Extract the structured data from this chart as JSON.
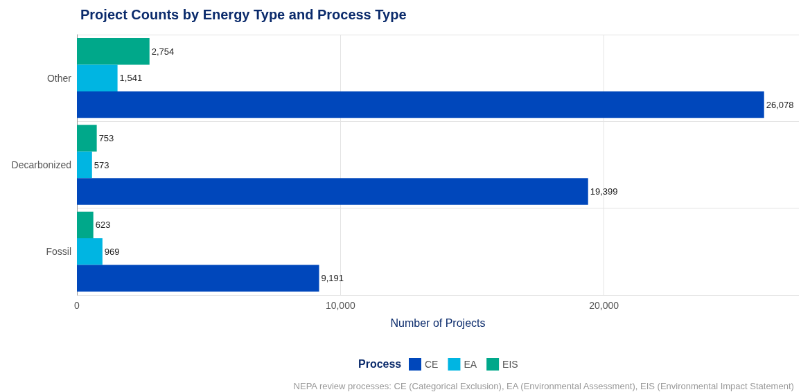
{
  "chart_data": {
    "type": "bar",
    "orientation": "horizontal",
    "title": "Project Counts by Energy Type and Process Type",
    "xlabel": "Number of Projects",
    "legend_title": "Process",
    "categories": [
      "Other",
      "Decarbonized",
      "Fossil"
    ],
    "series": [
      {
        "name": "CE",
        "color": "#0047bb",
        "values": [
          26078,
          19399,
          9191
        ],
        "value_labels": [
          "26,078",
          "19,399",
          "9,191"
        ]
      },
      {
        "name": "EA",
        "color": "#00b5e2",
        "values": [
          1541,
          573,
          969
        ],
        "value_labels": [
          "1,541",
          "573",
          "969"
        ]
      },
      {
        "name": "EIS",
        "color": "#00a88a",
        "values": [
          2754,
          753,
          623
        ],
        "value_labels": [
          "2,754",
          "753",
          "623"
        ]
      }
    ],
    "xlim": [
      0,
      27400
    ],
    "xticks": [
      0,
      {
        "value": 10000,
        "label": "10,000"
      },
      {
        "value": 20000,
        "label": "20,000"
      }
    ],
    "grid": true,
    "legend": "bottom",
    "annotations": [
      "NEPA review processes: CE (Categorical Exclusion), EA (Environmental Assessment), EIS (Environmental Impact Statement)"
    ]
  }
}
